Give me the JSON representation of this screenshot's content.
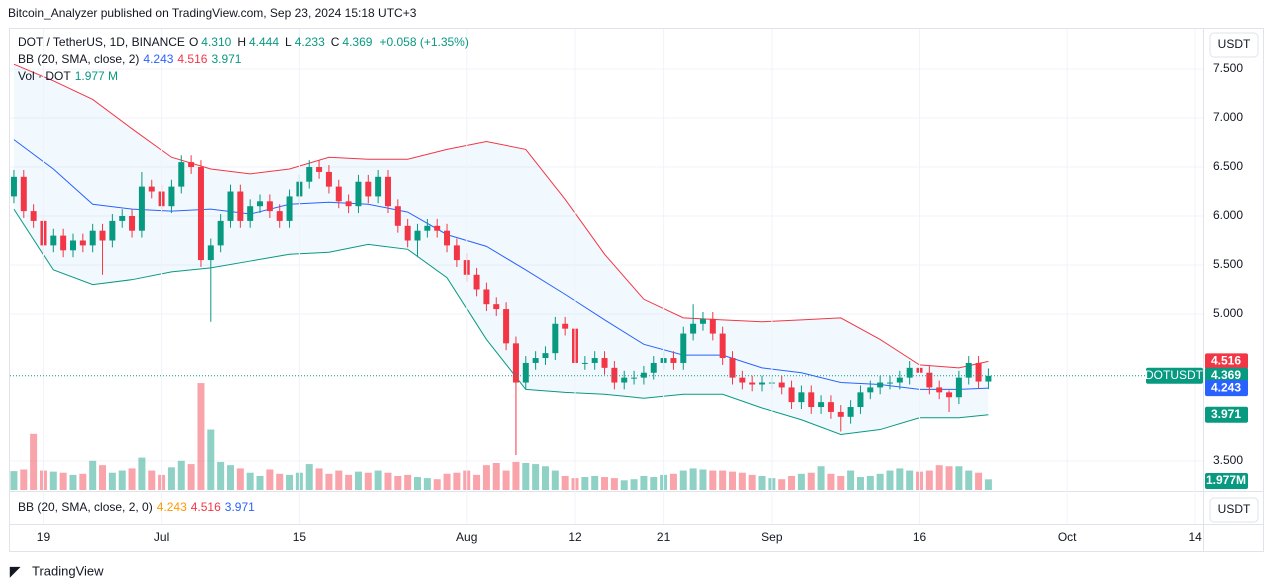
{
  "header": {
    "published": "Bitcoin_Analyzer published on TradingView.com, Sep 23, 2024 15:18 UTC+3",
    "logo": "TradingView"
  },
  "legend": {
    "symbol": "DOT / TetherUS, 1D, BINANCE",
    "ohlc": [
      {
        "key": "O",
        "value": "4.310"
      },
      {
        "key": "H",
        "value": "4.444"
      },
      {
        "key": "L",
        "value": "4.233"
      },
      {
        "key": "C",
        "value": "4.369"
      }
    ],
    "change": "+0.058 (+1.35%)",
    "bb": {
      "name": "BB (20, SMA, close, 2)",
      "values": [
        "4.243",
        "4.516",
        "3.971"
      ]
    },
    "vol": {
      "name": "Vol · DOT",
      "value": "1.977 M"
    }
  },
  "bb_pane": {
    "name": "BB (20, SMA, close, 2, 0)",
    "values": [
      "4.243",
      "4.516",
      "3.971"
    ]
  },
  "scale_buttons": [
    "USDT",
    "USDT"
  ],
  "chart_data": {
    "type": "candlestick",
    "symbol": "DOTUSDT",
    "up_color": "#089981",
    "down_color": "#f23645",
    "open": [
      6.2,
      6.4,
      6.05,
      5.95,
      5.7,
      5.8,
      5.65,
      5.75,
      5.7,
      5.85,
      5.75,
      5.95,
      6.0,
      5.85,
      6.3,
      6.25,
      6.1,
      6.3,
      6.55,
      6.5,
      5.55,
      5.7,
      5.95,
      6.25,
      5.95,
      6.1,
      6.15,
      6.05,
      5.95,
      6.2,
      6.35,
      6.5,
      6.45,
      6.3,
      6.15,
      6.1,
      6.35,
      6.2,
      6.4,
      6.1,
      5.9,
      5.75,
      5.85,
      5.9,
      5.85,
      5.7,
      5.55,
      5.4,
      5.25,
      5.1,
      5.05,
      4.7,
      4.3,
      4.5,
      4.55,
      4.6,
      4.9,
      4.85,
      4.5,
      4.5,
      4.55,
      4.45,
      4.3,
      4.35,
      4.35,
      4.4,
      4.5,
      4.55,
      4.5,
      4.8,
      4.9,
      4.95,
      4.8,
      4.55,
      4.35,
      4.3,
      4.28,
      4.3,
      4.3,
      4.25,
      4.1,
      4.2,
      4.05,
      4.1,
      4.0,
      3.95,
      4.05,
      4.2,
      4.25,
      4.3,
      4.3,
      4.35,
      4.45,
      4.4,
      4.25,
      4.2,
      4.15,
      4.35,
      4.5,
      4.31
    ],
    "high": [
      6.47,
      6.47,
      6.12,
      6.02,
      5.87,
      5.87,
      5.82,
      5.82,
      5.92,
      5.92,
      6.02,
      6.07,
      6.07,
      6.45,
      6.37,
      6.32,
      6.37,
      6.62,
      6.62,
      6.57,
      5.77,
      6.02,
      6.32,
      6.32,
      6.17,
      6.22,
      6.22,
      6.12,
      6.27,
      6.42,
      6.57,
      6.57,
      6.52,
      6.37,
      6.22,
      6.42,
      6.42,
      6.47,
      6.47,
      6.17,
      5.97,
      5.92,
      5.97,
      5.97,
      5.92,
      5.77,
      5.62,
      5.47,
      5.32,
      5.17,
      5.12,
      4.77,
      4.57,
      4.62,
      4.67,
      4.97,
      4.97,
      4.92,
      4.57,
      4.62,
      4.62,
      4.52,
      4.42,
      4.42,
      4.47,
      4.57,
      4.62,
      4.62,
      4.87,
      5.1,
      5.02,
      5.02,
      4.87,
      4.62,
      4.42,
      4.37,
      4.37,
      4.37,
      4.37,
      4.32,
      4.27,
      4.27,
      4.17,
      4.17,
      4.07,
      4.12,
      4.27,
      4.32,
      4.37,
      4.37,
      4.42,
      4.52,
      4.6,
      4.47,
      4.32,
      4.22,
      4.42,
      4.57,
      4.57,
      4.444
    ],
    "low": [
      6.13,
      5.98,
      5.88,
      5.45,
      5.63,
      5.58,
      5.58,
      5.63,
      5.63,
      5.4,
      5.68,
      5.88,
      5.78,
      5.78,
      6.18,
      6.03,
      6.03,
      6.23,
      6.43,
      5.48,
      4.92,
      5.63,
      5.88,
      5.88,
      5.88,
      6.03,
      5.98,
      5.88,
      5.88,
      6.13,
      6.28,
      6.38,
      6.23,
      6.08,
      6.03,
      6.03,
      6.13,
      6.13,
      6.03,
      5.83,
      5.68,
      5.58,
      5.78,
      5.78,
      5.63,
      5.48,
      5.33,
      5.18,
      5.03,
      4.98,
      4.63,
      3.56,
      4.23,
      4.43,
      4.48,
      4.53,
      4.78,
      4.43,
      4.43,
      4.43,
      4.38,
      4.23,
      4.23,
      4.28,
      4.28,
      4.33,
      4.43,
      4.43,
      4.43,
      4.73,
      4.83,
      4.73,
      4.48,
      4.28,
      4.23,
      4.21,
      4.21,
      4.23,
      4.18,
      4.03,
      4.03,
      3.98,
      3.98,
      3.93,
      3.8,
      3.88,
      3.98,
      4.13,
      4.18,
      4.23,
      4.23,
      4.28,
      4.33,
      4.18,
      4.13,
      4.0,
      4.08,
      4.28,
      4.24,
      4.233
    ],
    "close": [
      6.4,
      6.05,
      5.95,
      5.7,
      5.8,
      5.65,
      5.75,
      5.7,
      5.85,
      5.75,
      5.95,
      6.0,
      5.85,
      6.3,
      6.25,
      6.1,
      6.3,
      6.55,
      6.5,
      5.55,
      5.7,
      5.95,
      6.25,
      5.95,
      6.1,
      6.15,
      6.05,
      5.95,
      6.2,
      6.35,
      6.5,
      6.45,
      6.3,
      6.15,
      6.1,
      6.35,
      6.2,
      6.4,
      6.1,
      5.9,
      5.75,
      5.85,
      5.9,
      5.85,
      5.7,
      5.55,
      5.4,
      5.25,
      5.1,
      5.05,
      4.7,
      4.3,
      4.5,
      4.55,
      4.6,
      4.9,
      4.85,
      4.5,
      4.5,
      4.55,
      4.45,
      4.3,
      4.35,
      4.35,
      4.4,
      4.5,
      4.55,
      4.5,
      4.8,
      4.9,
      4.95,
      4.8,
      4.55,
      4.35,
      4.3,
      4.28,
      4.3,
      4.3,
      4.25,
      4.1,
      4.2,
      4.05,
      4.1,
      4.0,
      3.95,
      4.05,
      4.2,
      4.25,
      4.3,
      4.3,
      4.35,
      4.45,
      4.4,
      4.25,
      4.2,
      4.15,
      4.35,
      4.5,
      4.31,
      4.369
    ],
    "volume": {
      "values": [
        3.5,
        3.8,
        10.4,
        3.6,
        3.4,
        3.2,
        2.8,
        3.0,
        5.4,
        4.6,
        3.2,
        3.6,
        4.0,
        6.0,
        3.6,
        2.8,
        4.2,
        5.4,
        4.8,
        19.8,
        11.2,
        5.2,
        4.6,
        4.0,
        3.2,
        2.6,
        3.8,
        3.0,
        2.8,
        3.2,
        4.8,
        4.0,
        3.0,
        3.6,
        2.8,
        3.4,
        3.2,
        3.6,
        3.2,
        2.6,
        2.8,
        2.4,
        2.2,
        2.0,
        3.0,
        3.2,
        3.6,
        2.8,
        4.6,
        5.0,
        3.6,
        5.2,
        5.0,
        4.8,
        4.4,
        3.6,
        2.6,
        2.2,
        2.4,
        2.6,
        2.4,
        2.2,
        1.8,
        2.0,
        2.6,
        2.4,
        2.8,
        3.0,
        3.6,
        4.0,
        3.8,
        3.6,
        3.6,
        3.4,
        3.2,
        2.8,
        2.6,
        2.2,
        2.0,
        2.6,
        3.0,
        3.2,
        4.4,
        3.0,
        2.6,
        3.6,
        2.4,
        2.6,
        3.0,
        3.6,
        4.0,
        3.6,
        3.4,
        3.6,
        4.6,
        4.4,
        4.4,
        3.6,
        3.2,
        1.977
      ],
      "last_label": "1.977M"
    },
    "series": [
      {
        "name": "upper",
        "color": "#f23645",
        "x": [
          0,
          4,
          8,
          12,
          16,
          20,
          24,
          28,
          32,
          36,
          40,
          44,
          48,
          52,
          56,
          60,
          64,
          68,
          72,
          76,
          80,
          84,
          88,
          92,
          96,
          99
        ],
        "values": [
          7.55,
          7.38,
          7.19,
          6.89,
          6.6,
          6.48,
          6.43,
          6.48,
          6.6,
          6.58,
          6.58,
          6.68,
          6.76,
          6.68,
          6.17,
          5.61,
          5.15,
          4.96,
          4.94,
          4.92,
          4.94,
          4.96,
          4.74,
          4.48,
          4.45,
          4.516
        ]
      },
      {
        "name": "basis",
        "color": "#2962ff",
        "x": [
          0,
          4,
          8,
          12,
          16,
          20,
          24,
          28,
          32,
          36,
          40,
          44,
          48,
          52,
          56,
          60,
          64,
          68,
          72,
          76,
          80,
          84,
          88,
          92,
          96,
          99
        ],
        "values": [
          6.78,
          6.48,
          6.12,
          6.07,
          6.05,
          6.07,
          6.02,
          6.12,
          6.14,
          6.12,
          6.04,
          5.81,
          5.69,
          5.45,
          5.2,
          4.94,
          4.69,
          4.58,
          4.58,
          4.45,
          4.4,
          4.3,
          4.28,
          4.23,
          4.23,
          4.243
        ]
      },
      {
        "name": "lower",
        "color": "#089981",
        "x": [
          0,
          4,
          8,
          12,
          16,
          20,
          24,
          28,
          32,
          36,
          40,
          44,
          48,
          52,
          56,
          60,
          64,
          68,
          72,
          76,
          80,
          84,
          88,
          92,
          96,
          99
        ],
        "values": [
          6.07,
          5.45,
          5.3,
          5.35,
          5.43,
          5.47,
          5.54,
          5.61,
          5.63,
          5.71,
          5.66,
          5.37,
          4.74,
          4.23,
          4.2,
          4.18,
          4.14,
          4.18,
          4.18,
          4.04,
          3.92,
          3.77,
          3.82,
          3.94,
          3.94,
          3.971
        ]
      }
    ],
    "xlim": [
      -0.4,
      120.8
    ],
    "xticks": [
      {
        "value": 3,
        "label": "19"
      },
      {
        "value": 15,
        "label": "Jul"
      },
      {
        "value": 29,
        "label": "15"
      },
      {
        "value": 46,
        "label": "Aug"
      },
      {
        "value": 57,
        "label": "12"
      },
      {
        "value": 66,
        "label": "21"
      },
      {
        "value": 77,
        "label": "Sep"
      },
      {
        "value": 92,
        "label": "16"
      },
      {
        "value": 107,
        "label": "Oct"
      },
      {
        "value": 120,
        "label": "14"
      }
    ],
    "ylim": [
      3.203,
      7.909
    ],
    "yticks": [
      {
        "value": 3.5,
        "label": "3.500"
      },
      {
        "value": 5,
        "label": "5.000"
      },
      {
        "value": 5.5,
        "label": "5.500"
      },
      {
        "value": 6,
        "label": "6.000"
      },
      {
        "value": 6.5,
        "label": "6.500"
      },
      {
        "value": 7,
        "label": "7.000"
      },
      {
        "value": 7.5,
        "label": "7.500"
      }
    ],
    "grid": true
  }
}
